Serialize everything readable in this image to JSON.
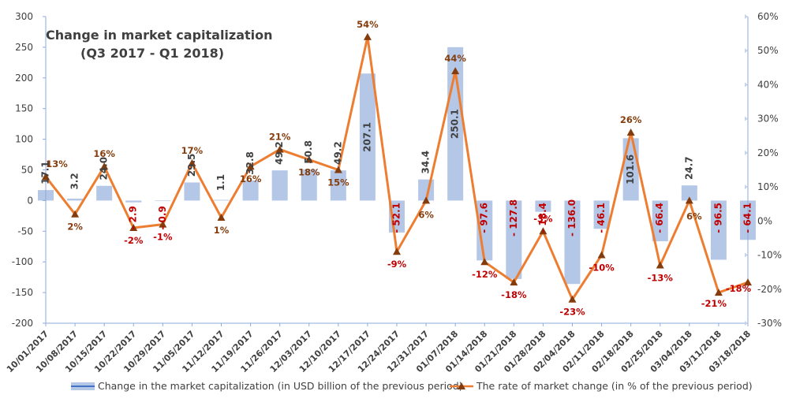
{
  "chart_data": {
    "type": "bar+line",
    "title": "Change in market capitalization",
    "subtitle": "(Q3 2017 - Q1 2018)",
    "categories": [
      "10/01/2017",
      "10/08/2017",
      "10/15/2017",
      "10/22/2017",
      "10/29/2017",
      "11/05/2017",
      "11/12/2017",
      "11/19/2017",
      "11/26/2017",
      "12/03/2017",
      "12/10/2017",
      "12/17/2017",
      "12/24/2017",
      "12/31/2017",
      "01/07/2018",
      "01/14/2018",
      "01/21/2018",
      "01/28/2018",
      "02/04/2018",
      "02/11/2018",
      "02/18/2018",
      "02/25/2018",
      "03/04/2018",
      "03/11/2018",
      "03/18/2018"
    ],
    "series": [
      {
        "name": "Change in the market capitalization  (in USD billion of the previous period)",
        "type": "bar",
        "axis": "left",
        "values": [
          17.1,
          3.2,
          24.0,
          -2.9,
          -0.9,
          29.5,
          1.1,
          32.8,
          49.2,
          50.8,
          49.2,
          207.1,
          -52.1,
          34.4,
          250.1,
          -97.6,
          -127.8,
          -18.4,
          -136.0,
          -46.1,
          101.6,
          -66.4,
          24.7,
          -96.5,
          -64.1
        ],
        "labels": [
          "17.1",
          "3.2",
          "24.0",
          "- 2.9",
          "- 0.9",
          "29.5",
          "1.1",
          "32.8",
          "49.2",
          "50.8",
          "49.2",
          "207.1",
          "- 52.1",
          "34.4",
          "250.1",
          "- 97.6",
          "- 127.8",
          "- 18.4",
          "- 136.0",
          "- 46.1",
          "101.6",
          "- 66.4",
          "24.7",
          "- 96.5",
          "- 64.1"
        ]
      },
      {
        "name": "The rate of market change (in % of the previous period)",
        "type": "line",
        "axis": "right",
        "values": [
          13,
          2,
          16,
          -2,
          -1,
          17,
          1,
          16,
          21,
          18,
          15,
          54,
          -9,
          6,
          44,
          -12,
          -18,
          -3,
          -23,
          -10,
          26,
          -13,
          6,
          -21,
          -18
        ],
        "labels": [
          "13%",
          "2%",
          "16%",
          "-2%",
          "-1%",
          "17%",
          "1%",
          "16%",
          "21%",
          "18%",
          "15%",
          "54%",
          "-9%",
          "6%",
          "44%",
          "-12%",
          "-18%",
          "-3%",
          "-23%",
          "-10%",
          "26%",
          "-13%",
          "6%",
          "-21%",
          "-18%"
        ]
      }
    ],
    "ylim_left": [
      -200,
      300
    ],
    "yticks_left": [
      "300",
      "250",
      "200",
      "150",
      "100",
      "50",
      "0",
      "-50",
      "-100",
      "-150",
      "-200"
    ],
    "ylim_right": [
      -30,
      60
    ],
    "yticks_right": [
      "60%",
      "50%",
      "40%",
      "30%",
      "20%",
      "10%",
      "0%",
      "-10%",
      "-20%",
      "-30%"
    ],
    "grid": "none",
    "legend_position": "bottom",
    "colors": {
      "bar": "#b4c7e7",
      "line": "#ed7d31",
      "marker": "#843c0c",
      "negative_label": "#c00000",
      "positive_label": "#404040",
      "axis": "#8eaadb"
    }
  }
}
